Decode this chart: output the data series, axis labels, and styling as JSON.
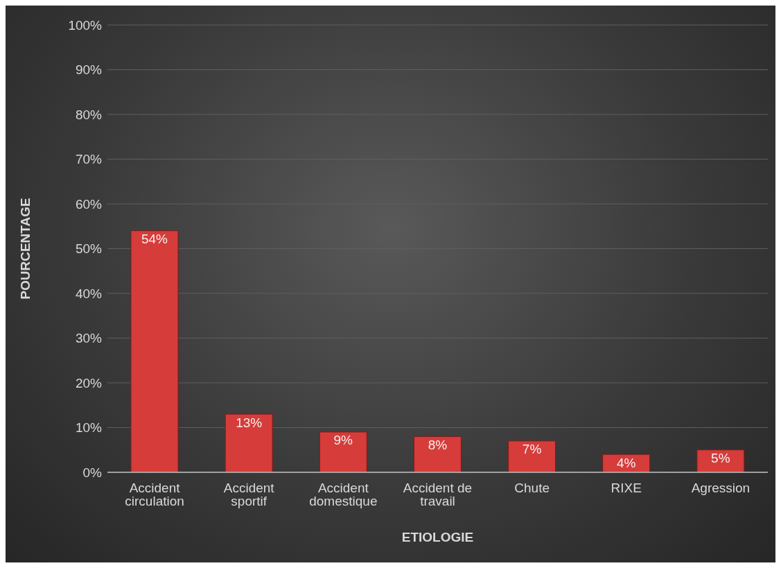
{
  "chart_data": {
    "type": "bar",
    "xlabel": "ETIOLOGIE",
    "ylabel": "POURCENTAGE",
    "categories": [
      "Accident circulation",
      "Accident sportif",
      "Accident domestique",
      "Accident de travail",
      "Chute",
      "RIXE",
      "Agression"
    ],
    "values": [
      54,
      13,
      9,
      8,
      7,
      4,
      5
    ],
    "value_labels": [
      "54%",
      "13%",
      "9%",
      "8%",
      "7%",
      "4%",
      "5%"
    ],
    "color": "#d63c3a",
    "ylim": [
      0,
      100
    ],
    "yticks": [
      {
        "value": 0,
        "label": "0%"
      },
      {
        "value": 10,
        "label": "10%"
      },
      {
        "value": 20,
        "label": "20%"
      },
      {
        "value": 30,
        "label": "30%"
      },
      {
        "value": 40,
        "label": "40%"
      },
      {
        "value": 50,
        "label": "50%"
      },
      {
        "value": 60,
        "label": "60%"
      },
      {
        "value": 70,
        "label": "70%"
      },
      {
        "value": 80,
        "label": "80%"
      },
      {
        "value": 90,
        "label": "90%"
      },
      {
        "value": 100,
        "label": "100%"
      }
    ],
    "grid": "y",
    "legend": false
  }
}
